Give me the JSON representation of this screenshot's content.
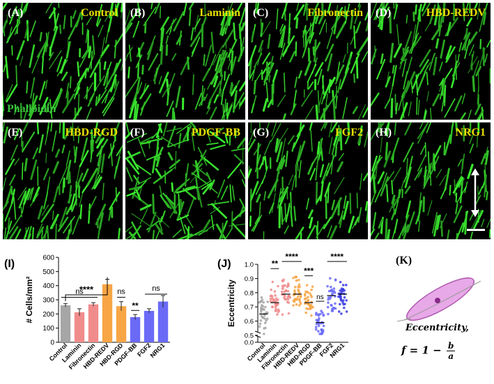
{
  "panels": [
    {
      "letter": "(A)",
      "name": "Control",
      "stain": "Phalloidin"
    },
    {
      "letter": "(B)",
      "name": "Laminin"
    },
    {
      "letter": "(C)",
      "name": "Fibronectin"
    },
    {
      "letter": "(D)",
      "name": "HBD-REDV"
    },
    {
      "letter": "(E)",
      "name": "HBD-RGD"
    },
    {
      "letter": "(F)",
      "name": "PDGF-BB"
    },
    {
      "letter": "(G)",
      "name": "FGF2"
    },
    {
      "letter": "(H)",
      "name": "NRG1"
    }
  ],
  "colors": {
    "cell": "#3fd23f",
    "title": "#e8e000",
    "gray": "#a6a6a6",
    "pink": "#f08c8c",
    "orange": "#f7a545",
    "blue": "#6a6af7",
    "darkblue": "#3c3ce0"
  },
  "chart_data": [
    {
      "panel": "(I)",
      "type": "bar",
      "ylabel": "# Cells/mm²",
      "ylim": [
        0,
        600
      ],
      "yticks": [
        0,
        100,
        200,
        300,
        400,
        500,
        600
      ],
      "categories": [
        "Control",
        "Laminin",
        "Fibronectin",
        "HBD-REDV",
        "HBD-RGD",
        "PDGF-BB",
        "FGF2",
        "NRG1"
      ],
      "values": [
        262,
        212,
        268,
        410,
        255,
        178,
        222,
        288
      ],
      "errors": [
        12,
        25,
        12,
        35,
        32,
        18,
        15,
        42
      ],
      "bar_colors": [
        "#a6a6a6",
        "#f08c8c",
        "#f08c8c",
        "#f7a545",
        "#f7a545",
        "#6a6af7",
        "#6a6af7",
        "#6a6af7"
      ],
      "annotations": [
        "****",
        "ns",
        "ns",
        "**",
        "ns"
      ]
    },
    {
      "panel": "(J)",
      "type": "scatter",
      "ylabel": "Eccentricity",
      "ylim": [
        0,
        1.0
      ],
      "yticks": [
        "0.0",
        "0.5",
        "0.6",
        "0.7",
        "0.8",
        "0.9",
        "1.0"
      ],
      "categories": [
        "Control",
        "Laminin",
        "Fibronectin",
        "HBD-REDV",
        "HBD-RGD",
        "PDGF-BB",
        "FGF2",
        "NRG1"
      ],
      "means": [
        0.65,
        0.73,
        0.79,
        0.79,
        0.73,
        0.59,
        0.78,
        0.79
      ],
      "point_colors": [
        "#a6a6a6",
        "#f08c8c",
        "#f08c8c",
        "#f7a545",
        "#f7a545",
        "#6a6af7",
        "#6a6af7",
        "#3c3ce0"
      ],
      "annotations": [
        "**",
        "****",
        "***",
        "ns",
        "****"
      ]
    }
  ],
  "panelK": {
    "letter": "(K)",
    "caption": "Eccentricity,",
    "formula_f": "f = 1 −",
    "num": "b",
    "den": "a"
  },
  "panelI_letter": "(I)",
  "panelJ_letter": "(J)"
}
